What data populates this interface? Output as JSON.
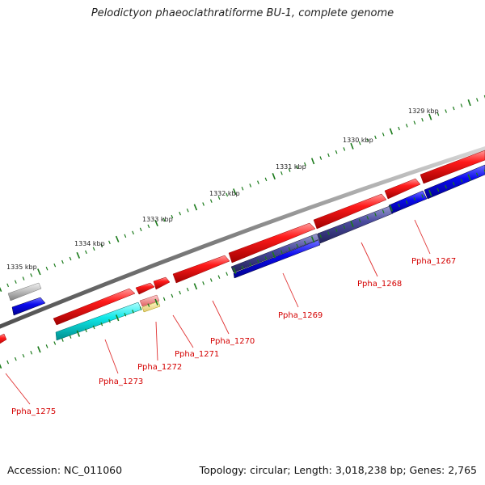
{
  "title": "Pelodictyon phaeoclathratiforme BU-1, complete genome",
  "footer": {
    "accession": "Accession: NC_011060",
    "summary": "Topology: circular; Length: 3,018,238 bp; Genes: 2,765"
  },
  "scale_labels": [
    "1329 kbp",
    "1330 kbp",
    "1331 kbp",
    "1332 kbp",
    "1333 kbp",
    "1334 kbp",
    "1335 kbp"
  ],
  "gene_labels": [
    "Ppha_1267",
    "Ppha_1268",
    "Ppha_1269",
    "Ppha_1270",
    "Ppha_1271",
    "Ppha_1272",
    "Ppha_1273",
    "Ppha_1275"
  ],
  "colors": {
    "gene_forward": "#ff0000",
    "cds_blue": "#0000ee",
    "cds_cyan": "#00e0e0",
    "cds_gray": "#b0b0b0",
    "cds_slate": "#4a4aa0",
    "label_red": "#d40000",
    "tick_green": "#1a7a1a",
    "backbone": "#808080"
  }
}
